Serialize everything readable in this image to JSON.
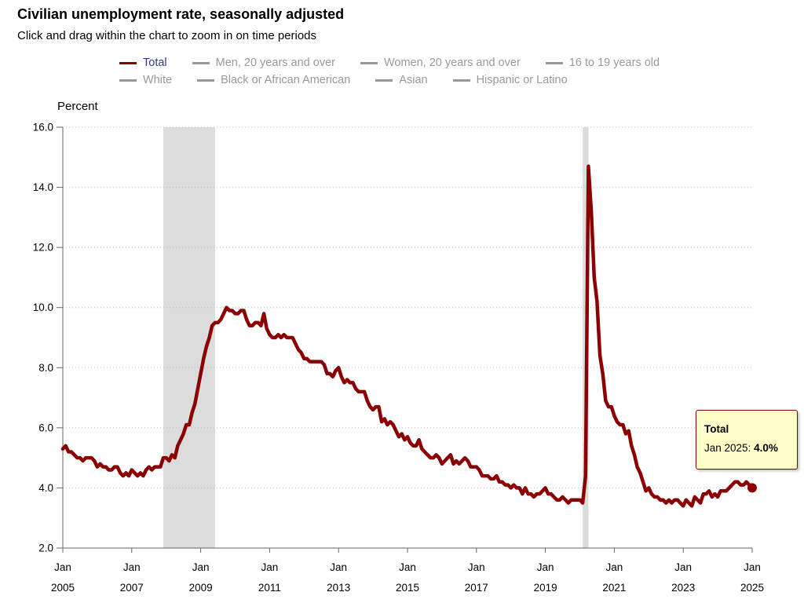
{
  "title": "Civilian unemployment rate, seasonally adjusted",
  "subtitle": "Click and drag within the chart to zoom in on time periods",
  "legend": {
    "row1": [
      "Total",
      "Men, 20 years and over",
      "Women, 20 years and over",
      "16 to 19 years old"
    ],
    "row2": [
      "White",
      "Black or African American",
      "Asian",
      "Hispanic or Latino"
    ],
    "active": "Total"
  },
  "tooltip": {
    "title": "Total",
    "label": "Jan 2025: ",
    "value": "4.0%"
  },
  "colors": {
    "series": "#8b0000",
    "recession": "#dcdcdc",
    "grid": "#bbbbbb",
    "legend_inactive": "#999999",
    "legend_active_text": "#2a3a8c"
  },
  "chart_data": {
    "type": "line",
    "ylabel": "Percent",
    "ylim": [
      2.0,
      16.0
    ],
    "yticks": [
      "2.0",
      "4.0",
      "6.0",
      "8.0",
      "10.0",
      "12.0",
      "14.0",
      "16.0"
    ],
    "xlim": [
      2005.0,
      2025.0
    ],
    "xticks": [
      {
        "month": "Jan",
        "year": "2005",
        "x": 2005
      },
      {
        "month": "Jan",
        "year": "2007",
        "x": 2007
      },
      {
        "month": "Jan",
        "year": "2009",
        "x": 2009
      },
      {
        "month": "Jan",
        "year": "2011",
        "x": 2011
      },
      {
        "month": "Jan",
        "year": "2013",
        "x": 2013
      },
      {
        "month": "Jan",
        "year": "2015",
        "x": 2015
      },
      {
        "month": "Jan",
        "year": "2017",
        "x": 2017
      },
      {
        "month": "Jan",
        "year": "2019",
        "x": 2019
      },
      {
        "month": "Jan",
        "year": "2021",
        "x": 2021
      },
      {
        "month": "Jan",
        "year": "2023",
        "x": 2023
      },
      {
        "month": "Jan",
        "year": "2025",
        "x": 2025
      }
    ],
    "grid": "horizontal-dotted",
    "recessions": [
      [
        2007.917,
        2009.417
      ],
      [
        2020.083,
        2020.25
      ]
    ],
    "series": [
      {
        "name": "Total",
        "start": 2005.0,
        "step": 0.08333,
        "values": [
          5.3,
          5.4,
          5.2,
          5.2,
          5.1,
          5.0,
          5.0,
          4.9,
          5.0,
          5.0,
          5.0,
          4.9,
          4.7,
          4.8,
          4.7,
          4.7,
          4.6,
          4.6,
          4.7,
          4.7,
          4.5,
          4.4,
          4.5,
          4.4,
          4.6,
          4.5,
          4.4,
          4.5,
          4.4,
          4.6,
          4.7,
          4.6,
          4.7,
          4.7,
          4.7,
          5.0,
          5.0,
          4.9,
          5.1,
          5.0,
          5.4,
          5.6,
          5.8,
          6.1,
          6.1,
          6.5,
          6.8,
          7.3,
          7.8,
          8.3,
          8.7,
          9.0,
          9.4,
          9.5,
          9.5,
          9.6,
          9.8,
          10.0,
          9.9,
          9.9,
          9.8,
          9.8,
          9.9,
          9.9,
          9.6,
          9.4,
          9.4,
          9.5,
          9.5,
          9.4,
          9.8,
          9.3,
          9.1,
          9.0,
          9.0,
          9.1,
          9.0,
          9.1,
          9.0,
          9.0,
          9.0,
          8.8,
          8.6,
          8.5,
          8.3,
          8.3,
          8.2,
          8.2,
          8.2,
          8.2,
          8.2,
          8.1,
          7.8,
          7.8,
          7.7,
          7.9,
          8.0,
          7.7,
          7.5,
          7.6,
          7.5,
          7.5,
          7.3,
          7.2,
          7.2,
          7.2,
          6.9,
          6.7,
          6.6,
          6.7,
          6.7,
          6.2,
          6.3,
          6.1,
          6.2,
          6.1,
          5.9,
          5.7,
          5.8,
          5.6,
          5.7,
          5.5,
          5.4,
          5.4,
          5.6,
          5.3,
          5.2,
          5.1,
          5.0,
          5.0,
          5.1,
          5.0,
          4.8,
          4.9,
          5.0,
          5.1,
          4.8,
          4.9,
          4.8,
          4.9,
          5.0,
          4.9,
          4.7,
          4.7,
          4.7,
          4.6,
          4.4,
          4.4,
          4.4,
          4.3,
          4.3,
          4.4,
          4.2,
          4.2,
          4.1,
          4.1,
          4.0,
          4.1,
          4.0,
          4.0,
          3.8,
          4.0,
          3.8,
          3.8,
          3.7,
          3.8,
          3.8,
          3.9,
          4.0,
          3.8,
          3.8,
          3.7,
          3.6,
          3.6,
          3.7,
          3.6,
          3.5,
          3.6,
          3.6,
          3.6,
          3.6,
          3.5,
          4.4,
          14.7,
          13.2,
          11.0,
          10.2,
          8.4,
          7.8,
          6.9,
          6.7,
          6.7,
          6.4,
          6.2,
          6.1,
          6.1,
          5.8,
          5.9,
          5.4,
          5.1,
          4.7,
          4.5,
          4.2,
          3.9,
          4.0,
          3.8,
          3.7,
          3.7,
          3.6,
          3.6,
          3.5,
          3.6,
          3.5,
          3.6,
          3.6,
          3.5,
          3.4,
          3.6,
          3.5,
          3.4,
          3.7,
          3.6,
          3.5,
          3.8,
          3.8,
          3.9,
          3.7,
          3.8,
          3.7,
          3.9,
          3.9,
          3.9,
          4.0,
          4.1,
          4.2,
          4.2,
          4.1,
          4.1,
          4.2,
          4.1,
          4.0
        ]
      }
    ]
  }
}
